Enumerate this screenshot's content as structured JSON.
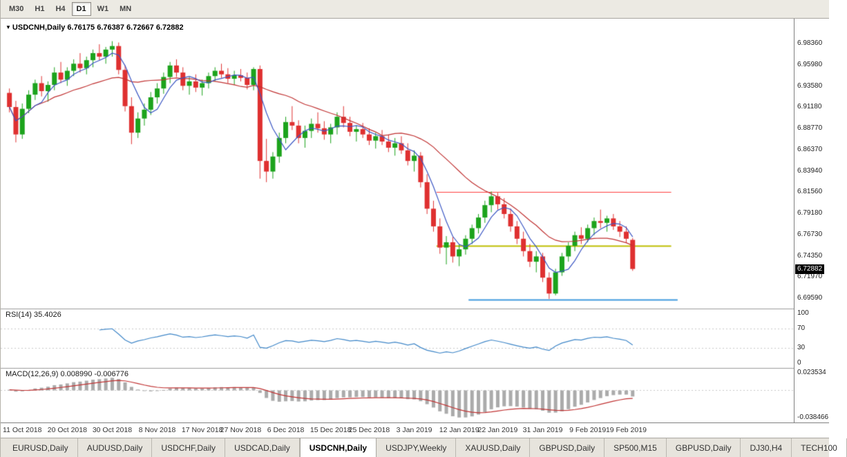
{
  "toolbar": {
    "timeframes": [
      "M30",
      "H1",
      "H4",
      "D1",
      "W1",
      "MN"
    ],
    "active_timeframe": "D1"
  },
  "chart": {
    "marker": "▼",
    "title": "USDCNH,Daily",
    "ohlc": "6.76175 6.76387 6.72667 6.72882"
  },
  "price_scale": {
    "labels": [
      "6.98360",
      "6.95980",
      "6.93580",
      "6.91180",
      "6.88770",
      "6.86370",
      "6.83940",
      "6.81560",
      "6.79180",
      "6.76730",
      "6.74350",
      "6.71970",
      "6.69590"
    ],
    "current_price": "6.72882"
  },
  "rsi_panel": {
    "label": "RSI(14)",
    "value": "35.4026",
    "scale": [
      "100",
      "70",
      "30",
      "0"
    ]
  },
  "macd_panel": {
    "label": "MACD(12,26,9)",
    "values": "0.008990 -0.006776",
    "scale_top": "0.023534",
    "scale_bottom": "-0.038466"
  },
  "x_axis": {
    "labels": [
      {
        "text": "11 Oct 2018",
        "index": 2
      },
      {
        "text": "20 Oct 2018",
        "index": 9
      },
      {
        "text": "30 Oct 2018",
        "index": 16
      },
      {
        "text": "8 Nov 2018",
        "index": 23
      },
      {
        "text": "17 Nov 2018",
        "index": 30
      },
      {
        "text": "27 Nov 2018",
        "index": 36
      },
      {
        "text": "6 Dec 2018",
        "index": 43
      },
      {
        "text": "15 Dec 2018",
        "index": 50
      },
      {
        "text": "25 Dec 2018",
        "index": 56
      },
      {
        "text": "3 Jan 2019",
        "index": 63
      },
      {
        "text": "12 Jan 2019",
        "index": 70
      },
      {
        "text": "22 Jan 2019",
        "index": 76
      },
      {
        "text": "31 Jan 2019",
        "index": 83
      },
      {
        "text": "9 Feb 2019",
        "index": 90
      },
      {
        "text": "19 Feb 2019",
        "index": 96
      }
    ]
  },
  "tabs": {
    "items": [
      "EURUSD,Daily",
      "AUDUSD,Daily",
      "USDCHF,Daily",
      "USDCAD,Daily",
      "USDCNH,Daily",
      "USDJPY,Weekly",
      "XAUUSD,Daily",
      "GBPUSD,Daily",
      "SP500,M15",
      "GBPUSD,Daily",
      "DJ30,H4",
      "TECH100"
    ],
    "active_index": 4
  },
  "chart_data": {
    "type": "candlestick+indicators",
    "symbol": "USDCNH",
    "timeframe": "Daily",
    "price_range": {
      "max": 7.012,
      "min": 6.684
    },
    "colors": {
      "up": "#1ca31c",
      "down": "#df3030",
      "ma_fast": "#3a56c4",
      "ma_slow": "#c03030",
      "rsi": "#3e86c8",
      "macd_hist": "#ababab",
      "macd_signal": "#c03030"
    },
    "candles": [
      [
        6.928,
        6.933,
        6.906,
        6.912
      ],
      [
        6.912,
        6.919,
        6.872,
        6.881
      ],
      [
        6.881,
        6.916,
        6.876,
        6.91
      ],
      [
        6.91,
        6.931,
        6.905,
        6.926
      ],
      [
        6.926,
        6.943,
        6.92,
        6.939
      ],
      [
        6.939,
        6.947,
        6.924,
        6.93
      ],
      [
        6.93,
        6.941,
        6.918,
        6.937
      ],
      [
        6.937,
        6.957,
        6.931,
        6.951
      ],
      [
        6.951,
        6.963,
        6.939,
        6.943
      ],
      [
        6.943,
        6.957,
        6.936,
        6.953
      ],
      [
        6.953,
        6.966,
        6.947,
        6.961
      ],
      [
        6.961,
        6.973,
        6.951,
        6.956
      ],
      [
        6.956,
        6.969,
        6.949,
        6.965
      ],
      [
        6.965,
        6.977,
        6.957,
        6.973
      ],
      [
        6.973,
        6.983,
        6.965,
        6.969
      ],
      [
        6.969,
        6.98,
        6.961,
        6.977
      ],
      [
        6.977,
        6.9865,
        6.969,
        6.981
      ],
      [
        6.981,
        6.985,
        6.949,
        6.954
      ],
      [
        6.954,
        6.959,
        6.907,
        6.913
      ],
      [
        6.913,
        6.923,
        6.87,
        6.883
      ],
      [
        6.883,
        6.906,
        6.877,
        6.899
      ],
      [
        6.899,
        6.916,
        6.891,
        6.909
      ],
      [
        6.909,
        6.929,
        6.903,
        6.923
      ],
      [
        6.923,
        6.939,
        6.916,
        6.933
      ],
      [
        6.933,
        6.951,
        6.927,
        6.946
      ],
      [
        6.946,
        6.963,
        6.939,
        6.959
      ],
      [
        6.959,
        6.966,
        6.946,
        6.951
      ],
      [
        6.951,
        6.957,
        6.931,
        6.936
      ],
      [
        6.936,
        6.946,
        6.926,
        6.941
      ],
      [
        6.941,
        6.949,
        6.929,
        6.934
      ],
      [
        6.934,
        6.943,
        6.925,
        6.939
      ],
      [
        6.939,
        6.951,
        6.933,
        6.947
      ],
      [
        6.947,
        6.957,
        6.941,
        6.953
      ],
      [
        6.953,
        6.961,
        6.945,
        6.949
      ],
      [
        6.949,
        6.956,
        6.939,
        6.944
      ],
      [
        6.944,
        6.953,
        6.937,
        6.948
      ],
      [
        6.948,
        6.955,
        6.941,
        6.945
      ],
      [
        6.945,
        6.951,
        6.932,
        6.937
      ],
      [
        6.937,
        6.957,
        6.931,
        6.955
      ],
      [
        6.955,
        6.959,
        6.831,
        6.851
      ],
      [
        6.851,
        6.876,
        6.827,
        6.839
      ],
      [
        6.839,
        6.861,
        6.831,
        6.856
      ],
      [
        6.856,
        6.883,
        6.849,
        6.877
      ],
      [
        6.877,
        6.901,
        6.871,
        6.895
      ],
      [
        6.895,
        6.913,
        6.886,
        6.891
      ],
      [
        6.891,
        6.897,
        6.871,
        6.877
      ],
      [
        6.877,
        6.891,
        6.866,
        6.885
      ],
      [
        6.885,
        6.899,
        6.877,
        6.893
      ],
      [
        6.893,
        6.906,
        6.883,
        6.888
      ],
      [
        6.888,
        6.896,
        6.875,
        6.881
      ],
      [
        6.881,
        6.893,
        6.871,
        6.889
      ],
      [
        6.889,
        6.906,
        6.881,
        6.901
      ],
      [
        6.901,
        6.913,
        6.889,
        6.894
      ],
      [
        6.894,
        6.901,
        6.879,
        6.884
      ],
      [
        6.884,
        6.891,
        6.873,
        6.887
      ],
      [
        6.887,
        6.894,
        6.877,
        6.881
      ],
      [
        6.881,
        6.888,
        6.869,
        6.874
      ],
      [
        6.874,
        6.883,
        6.865,
        6.879
      ],
      [
        6.879,
        6.886,
        6.869,
        6.873
      ],
      [
        6.873,
        6.881,
        6.861,
        6.866
      ],
      [
        6.866,
        6.877,
        6.857,
        6.871
      ],
      [
        6.871,
        6.879,
        6.859,
        6.863
      ],
      [
        6.863,
        6.871,
        6.846,
        6.851
      ],
      [
        6.851,
        6.863,
        6.839,
        6.857
      ],
      [
        6.857,
        6.861,
        6.821,
        6.827
      ],
      [
        6.827,
        6.836,
        6.791,
        6.797
      ],
      [
        6.797,
        6.806,
        6.771,
        6.777
      ],
      [
        6.777,
        6.786,
        6.746,
        6.753
      ],
      [
        6.753,
        6.766,
        6.734,
        6.759
      ],
      [
        6.759,
        6.765,
        6.736,
        6.743
      ],
      [
        6.743,
        6.757,
        6.732,
        6.751
      ],
      [
        6.751,
        6.767,
        6.745,
        6.763
      ],
      [
        6.763,
        6.779,
        6.757,
        6.775
      ],
      [
        6.775,
        6.791,
        6.769,
        6.787
      ],
      [
        6.787,
        6.806,
        6.781,
        6.801
      ],
      [
        6.801,
        6.8165,
        6.793,
        6.811
      ],
      [
        6.811,
        6.815,
        6.796,
        6.802
      ],
      [
        6.802,
        6.809,
        6.786,
        6.791
      ],
      [
        6.791,
        6.797,
        6.771,
        6.777
      ],
      [
        6.777,
        6.783,
        6.757,
        6.763
      ],
      [
        6.763,
        6.771,
        6.743,
        6.749
      ],
      [
        6.749,
        6.757,
        6.731,
        6.737
      ],
      [
        6.737,
        6.749,
        6.725,
        6.743
      ],
      [
        6.743,
        6.747,
        6.714,
        6.719
      ],
      [
        6.719,
        6.725,
        6.695,
        6.701
      ],
      [
        6.701,
        6.729,
        6.699,
        6.725
      ],
      [
        6.725,
        6.747,
        6.721,
        6.743
      ],
      [
        6.743,
        6.759,
        6.737,
        6.755
      ],
      [
        6.755,
        6.771,
        6.749,
        6.767
      ],
      [
        6.767,
        6.776,
        6.757,
        6.763
      ],
      [
        6.763,
        6.779,
        6.759,
        6.775
      ],
      [
        6.775,
        6.787,
        6.767,
        6.783
      ],
      [
        6.783,
        6.796,
        6.775,
        6.781
      ],
      [
        6.781,
        6.789,
        6.771,
        6.786
      ],
      [
        6.786,
        6.791,
        6.773,
        6.777
      ],
      [
        6.777,
        6.783,
        6.765,
        6.771
      ],
      [
        6.771,
        6.777,
        6.759,
        6.763
      ],
      [
        6.76175,
        6.76387,
        6.72667,
        6.72882
      ]
    ],
    "overlays": {
      "ma_fast_period": 5,
      "ma_slow_period": 20,
      "hlines": [
        {
          "price": 6.8156,
          "color": "#ff3c3c",
          "width": 1,
          "from_index": 67,
          "to_index": 103
        },
        {
          "price": 6.755,
          "color": "#bebe00",
          "width": 2,
          "from_index": 67,
          "to_index": 103
        },
        {
          "price": 6.694,
          "color": "#3e9ade",
          "width": 2,
          "from_index": 72,
          "to_index": 104
        }
      ]
    },
    "rsi": {
      "period": 14,
      "levels": [
        70,
        30
      ],
      "range": [
        0,
        100
      ]
    },
    "macd": {
      "fast": 12,
      "slow": 26,
      "signal": 9,
      "range": [
        -0.038466,
        0.023534
      ]
    }
  }
}
